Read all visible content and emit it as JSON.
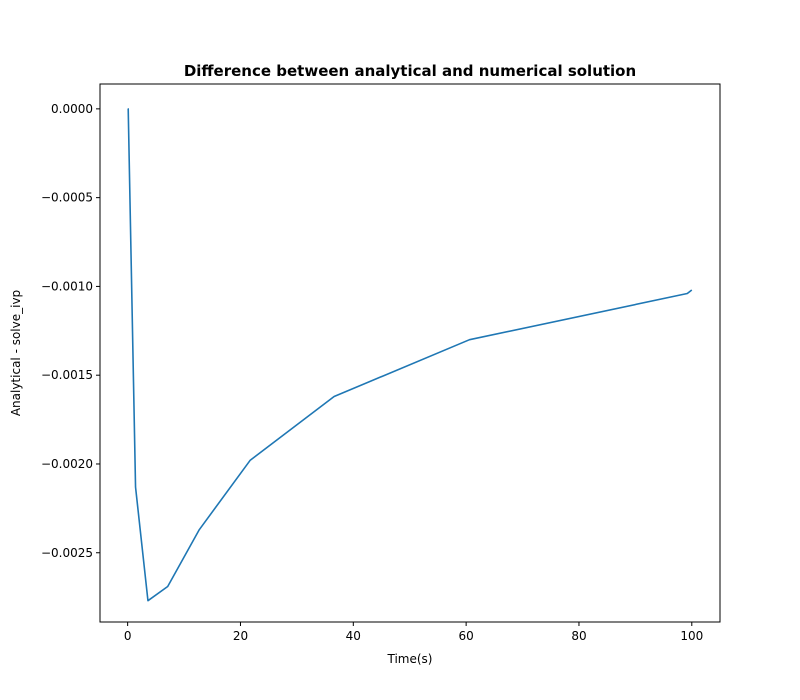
{
  "chart_data": {
    "type": "line",
    "title": "Difference between analytical and numerical solution",
    "xlabel": "Time(s)",
    "ylabel": "Analytical - solve_ivp",
    "xlim": [
      -4.9,
      105
    ],
    "ylim": [
      -0.00289,
      0.00014
    ],
    "x_ticks": [
      0,
      20,
      40,
      60,
      80,
      100
    ],
    "x_tick_labels": [
      "0",
      "20",
      "40",
      "60",
      "80",
      "100"
    ],
    "y_ticks": [
      0.0,
      -0.0005,
      -0.001,
      -0.0015,
      -0.002,
      -0.0025
    ],
    "y_tick_labels": [
      "0.0000",
      "−0.0005",
      "−0.0010",
      "−0.0015",
      "−0.0020",
      "−0.0025"
    ],
    "grid": false,
    "series": [
      {
        "color": "#1f77b4",
        "x": [
          0,
          0.1,
          1.4,
          3.6,
          7.1,
          12.7,
          21.7,
          36.6,
          60.6,
          99.2,
          100
        ],
        "y": [
          0.0,
          -5e-07,
          -0.00213,
          -0.00277,
          -0.00269,
          -0.00237,
          -0.00198,
          -0.00162,
          -0.0013,
          -0.00104,
          -0.00102
        ]
      }
    ]
  }
}
